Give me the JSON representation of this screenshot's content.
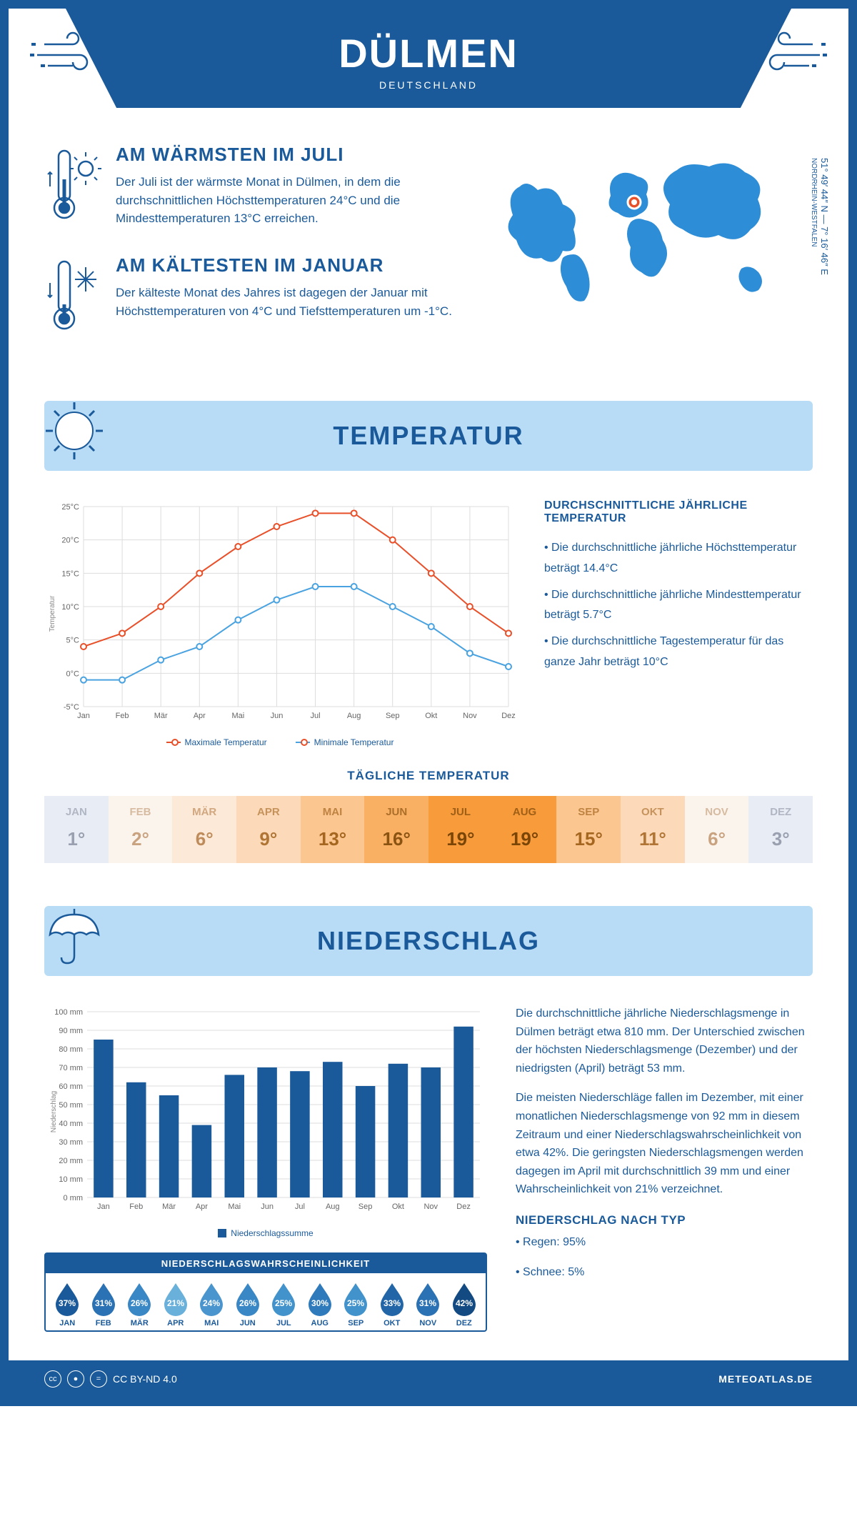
{
  "header": {
    "city": "DÜLMEN",
    "country": "DEUTSCHLAND"
  },
  "coords": {
    "lat": "51° 49′ 44″ N — 7° 16′ 46″ E",
    "region": "NORDRHEIN-WESTFALEN"
  },
  "warmest": {
    "title": "AM WÄRMSTEN IM JULI",
    "text": "Der Juli ist der wärmste Monat in Dülmen, in dem die durchschnittlichen Höchsttemperaturen 24°C und die Mindesttemperaturen 13°C erreichen."
  },
  "coldest": {
    "title": "AM KÄLTESTEN IM JANUAR",
    "text": "Der kälteste Monat des Jahres ist dagegen der Januar mit Höchsttemperaturen von 4°C und Tiefsttemperaturen um -1°C."
  },
  "sections": {
    "temp": "TEMPERATUR",
    "precip": "NIEDERSCHLAG"
  },
  "temp_chart": {
    "months": [
      "Jan",
      "Feb",
      "Mär",
      "Apr",
      "Mai",
      "Jun",
      "Jul",
      "Aug",
      "Sep",
      "Okt",
      "Nov",
      "Dez"
    ],
    "max": [
      4,
      6,
      10,
      15,
      19,
      22,
      24,
      24,
      20,
      15,
      10,
      6
    ],
    "min": [
      -1,
      -1,
      2,
      4,
      8,
      11,
      13,
      13,
      10,
      7,
      3,
      1
    ],
    "ylabel": "Temperatur",
    "ylim": [
      -5,
      25
    ],
    "yticks": [
      "-5°C",
      "0°C",
      "5°C",
      "10°C",
      "15°C",
      "20°C",
      "25°C"
    ],
    "max_color": "#e8502a",
    "min_color": "#4aa3e0",
    "legend_max": "Maximale Temperatur",
    "legend_min": "Minimale Temperatur",
    "grid_color": "#dddddd",
    "bg": "#ffffff"
  },
  "temp_side": {
    "heading": "DURCHSCHNITTLICHE JÄHRLICHE TEMPERATUR",
    "b1": "• Die durchschnittliche jährliche Höchsttemperatur beträgt 14.4°C",
    "b2": "• Die durchschnittliche jährliche Mindesttemperatur beträgt 5.7°C",
    "b3": "• Die durchschnittliche Tagestemperatur für das ganze Jahr beträgt 10°C"
  },
  "daily_temp": {
    "heading": "TÄGLICHE TEMPERATUR",
    "months": [
      "JAN",
      "FEB",
      "MÄR",
      "APR",
      "MAI",
      "JUN",
      "JUL",
      "AUG",
      "SEP",
      "OKT",
      "NOV",
      "DEZ"
    ],
    "values": [
      "1°",
      "2°",
      "6°",
      "9°",
      "13°",
      "16°",
      "19°",
      "19°",
      "15°",
      "11°",
      "6°",
      "3°"
    ],
    "bg_colors": [
      "#e8ecf4",
      "#fbf4ed",
      "#fde9d8",
      "#fcd9b8",
      "#fbc690",
      "#fab062",
      "#f89b3a",
      "#f89b3a",
      "#fbc690",
      "#fcd9b8",
      "#fbf4ed",
      "#e8ecf4"
    ],
    "text_colors": [
      "#9aa0b0",
      "#c9a380",
      "#be8c5a",
      "#b07534",
      "#a56620",
      "#8a5312",
      "#7a4608",
      "#7a4608",
      "#a56620",
      "#b07534",
      "#c9a380",
      "#9aa0b0"
    ]
  },
  "precip_chart": {
    "months": [
      "Jan",
      "Feb",
      "Mär",
      "Apr",
      "Mai",
      "Jun",
      "Jul",
      "Aug",
      "Sep",
      "Okt",
      "Nov",
      "Dez"
    ],
    "values": [
      85,
      62,
      55,
      39,
      66,
      70,
      68,
      73,
      60,
      72,
      70,
      92
    ],
    "ylabel": "Niederschlag",
    "ylim": [
      0,
      100
    ],
    "ytick_step": 10,
    "bar_color": "#1a5a9a",
    "legend": "Niederschlagssumme"
  },
  "precip_prob": {
    "heading": "NIEDERSCHLAGSWAHRSCHEINLICHKEIT",
    "months": [
      "JAN",
      "FEB",
      "MÄR",
      "APR",
      "MAI",
      "JUN",
      "JUL",
      "AUG",
      "SEP",
      "OKT",
      "NOV",
      "DEZ"
    ],
    "pcts": [
      "37%",
      "31%",
      "26%",
      "21%",
      "24%",
      "26%",
      "25%",
      "30%",
      "25%",
      "33%",
      "31%",
      "42%"
    ],
    "colors": [
      "#1a5a9a",
      "#2b72b4",
      "#3a87c6",
      "#69b0db",
      "#4b95ce",
      "#3a87c6",
      "#4293cc",
      "#2f7abb",
      "#4293cc",
      "#2366a8",
      "#2b72b4",
      "#134a82"
    ]
  },
  "precip_text": {
    "p1": "Die durchschnittliche jährliche Niederschlagsmenge in Dülmen beträgt etwa 810 mm. Der Unterschied zwischen der höchsten Niederschlagsmenge (Dezember) und der niedrigsten (April) beträgt 53 mm.",
    "p2": "Die meisten Niederschläge fallen im Dezember, mit einer monatlichen Niederschlagsmenge von 92 mm in diesem Zeitraum und einer Niederschlagswahrscheinlichkeit von etwa 42%. Die geringsten Niederschlagsmengen werden dagegen im April mit durchschnittlich 39 mm und einer Wahrscheinlichkeit von 21% verzeichnet.",
    "type_heading": "NIEDERSCHLAG NACH TYP",
    "type1": "• Regen: 95%",
    "type2": "• Schnee: 5%"
  },
  "footer": {
    "license": "CC BY-ND 4.0",
    "site": "METEOATLAS.DE"
  },
  "colors": {
    "primary": "#1a5a9a",
    "light": "#b8dcf5",
    "map": "#2d8dd6"
  }
}
